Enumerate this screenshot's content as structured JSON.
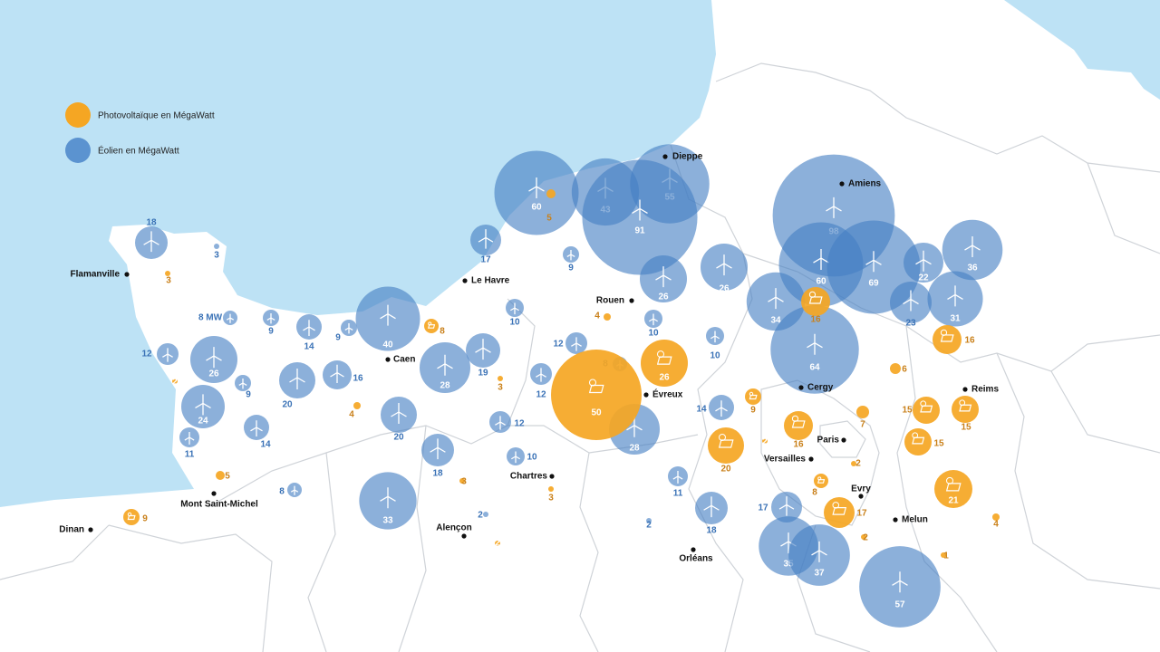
{
  "legend": {
    "solar": "Photovoltaïque en MégaWatt",
    "wind": "Éolien en MégaWatt"
  },
  "cities": [
    "Dieppe",
    "Amiens",
    "Le Havre",
    "Flamanville",
    "Rouen",
    "Caen",
    "Évreux",
    "Cergy",
    "Reims",
    "Paris",
    "Versailles",
    "Evry",
    "Melun",
    "Chartres",
    "Mont Saint-Michel",
    "Alençon",
    "Orléans",
    "Dinan"
  ],
  "wind": [
    18,
    60,
    43,
    55,
    91,
    17,
    9,
    26,
    26,
    98,
    60,
    69,
    22,
    36,
    23,
    31,
    34,
    64,
    10,
    10,
    12,
    10,
    8,
    12,
    28,
    14,
    12,
    10,
    11,
    18,
    17,
    35,
    37,
    57,
    40,
    28,
    19,
    20,
    18,
    33,
    16,
    20,
    14,
    9,
    9,
    {
      "value": 8,
      "label": "8 MW"
    },
    12,
    26,
    9,
    24,
    11,
    14,
    8,
    3,
    2,
    2
  ],
  "solar": [
    50,
    26,
    16,
    16,
    6,
    9,
    16,
    20,
    7,
    15,
    15,
    15,
    21,
    17,
    8,
    8,
    4,
    5,
    3,
    4,
    5,
    9,
    3,
    3,
    3,
    2,
    2,
    2,
    2,
    1,
    4,
    2
  ]
}
